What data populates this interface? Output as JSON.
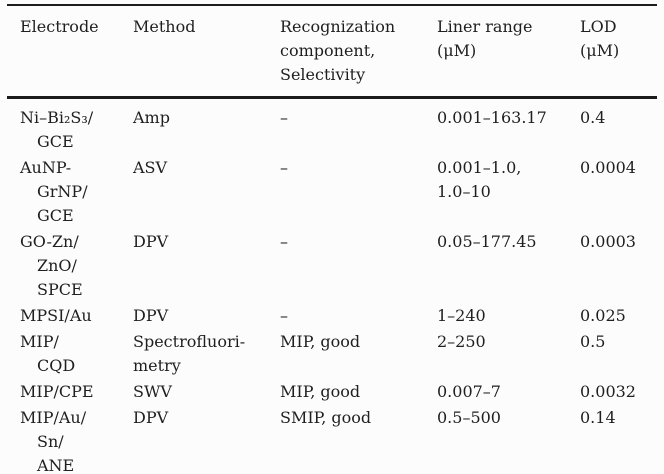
{
  "colors": {
    "background": "#fcfcfc",
    "text": "#1f1f1f",
    "rule": "#1c1c1c"
  },
  "table": {
    "headers": [
      {
        "lines": [
          "Electrode"
        ]
      },
      {
        "lines": [
          "Method"
        ]
      },
      {
        "lines": [
          "Recognization",
          "component,",
          "Selectivity"
        ]
      },
      {
        "lines": [
          "Liner range",
          "(μM)"
        ]
      },
      {
        "lines": [
          "LOD",
          "(μM)"
        ]
      }
    ],
    "rows": [
      {
        "electrode": [
          "Ni–Bi₂S₃/",
          "GCE"
        ],
        "method": [
          "Amp"
        ],
        "recognition": [
          "–"
        ],
        "linear_range": [
          "0.001–163.17"
        ],
        "lod": [
          "0.4"
        ]
      },
      {
        "electrode": [
          "AuNP-",
          "GrNP/",
          "GCE"
        ],
        "method": [
          "ASV"
        ],
        "recognition": [
          "–"
        ],
        "linear_range": [
          "0.001–1.0,",
          "1.0–10"
        ],
        "lod": [
          "0.0004"
        ]
      },
      {
        "electrode": [
          "GO-Zn/",
          "ZnO/",
          "SPCE"
        ],
        "method": [
          "DPV"
        ],
        "recognition": [
          "–"
        ],
        "linear_range": [
          "0.05–177.45"
        ],
        "lod": [
          "0.0003"
        ]
      },
      {
        "electrode": [
          "MPSI/Au"
        ],
        "method": [
          "DPV"
        ],
        "recognition": [
          "–"
        ],
        "linear_range": [
          "1–240"
        ],
        "lod": [
          "0.025"
        ]
      },
      {
        "electrode": [
          "MIP/",
          "CQD"
        ],
        "method": [
          "Spectrofluori-",
          "metry"
        ],
        "recognition": [
          "MIP, good"
        ],
        "linear_range": [
          "2–250"
        ],
        "lod": [
          "0.5"
        ]
      },
      {
        "electrode": [
          "MIP/CPE"
        ],
        "method": [
          "SWV"
        ],
        "recognition": [
          "MIP, good"
        ],
        "linear_range": [
          "0.007–7"
        ],
        "lod": [
          "0.0032"
        ]
      },
      {
        "electrode": [
          "MIP/Au/",
          "Sn/",
          "ANE"
        ],
        "method": [
          "DPV"
        ],
        "recognition": [
          "SMIP, good"
        ],
        "linear_range": [
          "0.5–500"
        ],
        "lod": [
          "0.14"
        ]
      }
    ]
  }
}
